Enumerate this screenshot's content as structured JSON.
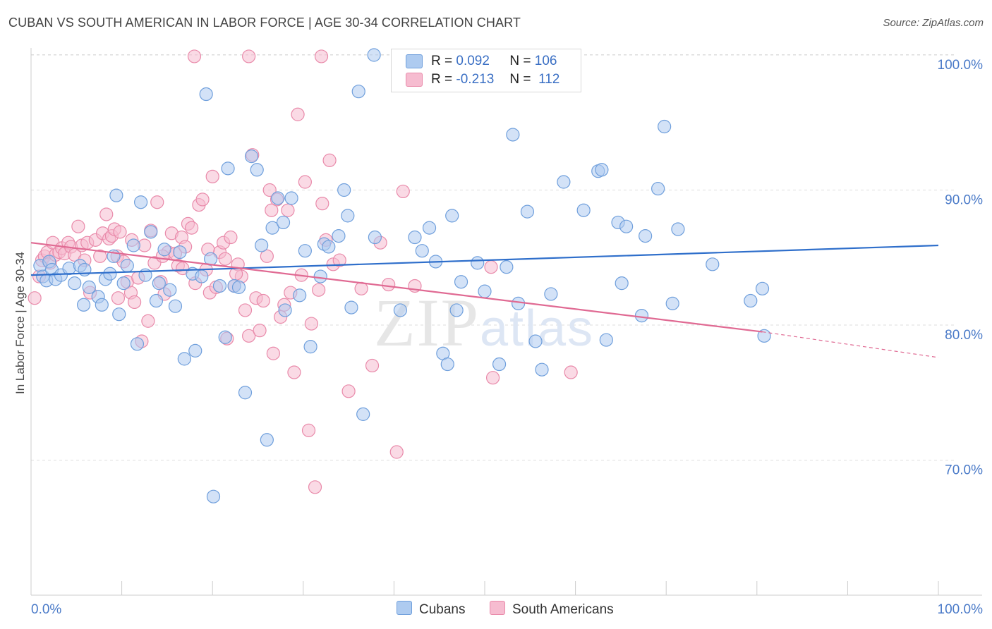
{
  "title": "CUBAN VS SOUTH AMERICAN IN LABOR FORCE | AGE 30-34 CORRELATION CHART",
  "source": "Source: ZipAtlas.com",
  "legend": {
    "r_label": "R =",
    "n_label": "N =",
    "rows": [
      {
        "name": "Cubans",
        "r": "0.092",
        "n": "106"
      },
      {
        "name": "South Americans",
        "r": "-0.213",
        "n": "112"
      }
    ]
  },
  "colors": {
    "cubans_fill": "#aecbf0",
    "cubans_stroke": "#6f9fdc",
    "cubans_line": "#2f6fcb",
    "south_fill": "#f6bcd0",
    "south_stroke": "#e98aaa",
    "south_line": "#e06a93",
    "grid": "#dddddd",
    "tick_text": "#4a7ac8"
  },
  "chart_data": {
    "type": "scatter",
    "ylabel": "In Labor Force | Age 30-34",
    "xlim": [
      0,
      100
    ],
    "ylim": [
      60,
      100
    ],
    "x_tick_labels": [
      "0.0%",
      "100.0%"
    ],
    "y_ticks": [
      {
        "value": 70,
        "label": "70.0%"
      },
      {
        "value": 80,
        "label": "80.0%"
      },
      {
        "value": 90,
        "label": "90.0%"
      },
      {
        "value": 100,
        "label": "100.0%"
      }
    ],
    "grid": true,
    "legend_position": "top-center",
    "watermark": "ZIPatlas",
    "series": [
      {
        "name": "Cubans",
        "trend": {
          "x0": 0,
          "y0": 83.7,
          "x1": 100,
          "y1": 85.9
        },
        "points": [
          [
            1,
            84.4
          ],
          [
            1.3,
            83.6
          ],
          [
            1.7,
            83.3
          ],
          [
            2,
            84.7
          ],
          [
            2.3,
            84.1
          ],
          [
            2.7,
            83.4
          ],
          [
            3.3,
            83.7
          ],
          [
            4.2,
            84.2
          ],
          [
            4.8,
            83.1
          ],
          [
            5.4,
            84.4
          ],
          [
            5.9,
            84.1
          ],
          [
            6.4,
            82.8
          ],
          [
            5.8,
            81.5
          ],
          [
            7.4,
            82.1
          ],
          [
            7.8,
            81.5
          ],
          [
            8.2,
            83.4
          ],
          [
            8.7,
            83.8
          ],
          [
            9.1,
            85.1
          ],
          [
            9.4,
            89.6
          ],
          [
            9.7,
            80.8
          ],
          [
            10.2,
            83.1
          ],
          [
            10.6,
            84.4
          ],
          [
            11.3,
            85.9
          ],
          [
            11.7,
            78.6
          ],
          [
            12.1,
            89.1
          ],
          [
            12.6,
            83.7
          ],
          [
            13.2,
            86.9
          ],
          [
            13.8,
            81.8
          ],
          [
            14.1,
            83.1
          ],
          [
            14.7,
            85.6
          ],
          [
            15.3,
            82.6
          ],
          [
            15.9,
            81.4
          ],
          [
            16.4,
            85.4
          ],
          [
            16.9,
            77.5
          ],
          [
            17.8,
            83.8
          ],
          [
            18.1,
            78.1
          ],
          [
            18.8,
            83.6
          ],
          [
            19.3,
            97.1
          ],
          [
            19.8,
            84.9
          ],
          [
            20.1,
            67.3
          ],
          [
            20.8,
            82.9
          ],
          [
            21.4,
            79.1
          ],
          [
            21.7,
            91.6
          ],
          [
            22.4,
            82.9
          ],
          [
            22.9,
            82.8
          ],
          [
            23.6,
            75
          ],
          [
            24.3,
            92.5
          ],
          [
            24.9,
            91.5
          ],
          [
            25.4,
            85.9
          ],
          [
            26,
            71.5
          ],
          [
            26.6,
            87.2
          ],
          [
            27.2,
            89.4
          ],
          [
            28,
            81.1
          ],
          [
            27.8,
            87.6
          ],
          [
            28.7,
            89.4
          ],
          [
            29.6,
            82.2
          ],
          [
            30.2,
            85.5
          ],
          [
            30.8,
            78.4
          ],
          [
            31.9,
            83.6
          ],
          [
            32.3,
            86
          ],
          [
            32.8,
            85.8
          ],
          [
            33.9,
            86.6
          ],
          [
            34.5,
            90
          ],
          [
            34.9,
            88.1
          ],
          [
            35.3,
            81.3
          ],
          [
            36.1,
            97.3
          ],
          [
            36.6,
            73.4
          ],
          [
            37.9,
            86.5
          ],
          [
            37.8,
            100
          ],
          [
            40.7,
            81.1
          ],
          [
            42.3,
            86.5
          ],
          [
            43.1,
            85.5
          ],
          [
            43.9,
            87.2
          ],
          [
            44.6,
            84.7
          ],
          [
            45.4,
            77.9
          ],
          [
            45.9,
            77.1
          ],
          [
            46.4,
            88.1
          ],
          [
            46.9,
            81.1
          ],
          [
            47.4,
            83.2
          ],
          [
            49.2,
            84.6
          ],
          [
            50,
            82.5
          ],
          [
            51.6,
            77.1
          ],
          [
            52.4,
            84.3
          ],
          [
            53.1,
            94.1
          ],
          [
            53.7,
            81.6
          ],
          [
            54.7,
            88.4
          ],
          [
            55.6,
            78.8
          ],
          [
            56.3,
            76.7
          ],
          [
            57.3,
            82.3
          ],
          [
            58.7,
            90.6
          ],
          [
            60.9,
            88.5
          ],
          [
            62.5,
            91.4
          ],
          [
            62.9,
            91.5
          ],
          [
            63.4,
            78.9
          ],
          [
            64.7,
            87.6
          ],
          [
            65.1,
            83.1
          ],
          [
            65.6,
            87.3
          ],
          [
            67.3,
            80.7
          ],
          [
            67.7,
            86.6
          ],
          [
            69.1,
            90.1
          ],
          [
            69.8,
            94.7
          ],
          [
            70.7,
            81.6
          ],
          [
            71.3,
            87.1
          ],
          [
            75.1,
            84.5
          ],
          [
            79.3,
            81.8
          ],
          [
            80.6,
            82.7
          ],
          [
            80.8,
            79.2
          ]
        ]
      },
      {
        "name": "South Americans",
        "trend": {
          "x0": 0,
          "y0": 86.1,
          "x1": 80.6,
          "y1": 79.5,
          "dash_x1": 100,
          "dash_y1": 77.6
        },
        "points": [
          [
            0.4,
            82
          ],
          [
            0.9,
            83.6
          ],
          [
            1.2,
            84.8
          ],
          [
            1.5,
            85.1
          ],
          [
            1.8,
            85.4
          ],
          [
            2.1,
            84.6
          ],
          [
            2.4,
            86.1
          ],
          [
            2.7,
            85.2
          ],
          [
            3.1,
            85.4
          ],
          [
            3.4,
            85.7
          ],
          [
            3.7,
            85.3
          ],
          [
            4.1,
            86.1
          ],
          [
            4.4,
            85.8
          ],
          [
            4.8,
            85.2
          ],
          [
            5.2,
            87.3
          ],
          [
            5.6,
            85.9
          ],
          [
            5.9,
            84.8
          ],
          [
            6.2,
            86.1
          ],
          [
            6.5,
            82.4
          ],
          [
            7.1,
            86.3
          ],
          [
            7.6,
            85.1
          ],
          [
            7.9,
            86.8
          ],
          [
            8.3,
            88.2
          ],
          [
            8.6,
            86.4
          ],
          [
            8.9,
            86.6
          ],
          [
            9.2,
            87.1
          ],
          [
            9.5,
            85.1
          ],
          [
            9.8,
            86.9
          ],
          [
            10.2,
            84.7
          ],
          [
            10.6,
            83.2
          ],
          [
            11,
            82.4
          ],
          [
            11.4,
            81.7
          ],
          [
            11.8,
            83.5
          ],
          [
            12.2,
            78.8
          ],
          [
            12.5,
            85.9
          ],
          [
            12.9,
            80.3
          ],
          [
            13.2,
            87
          ],
          [
            13.6,
            84.6
          ],
          [
            13.9,
            89.1
          ],
          [
            14.3,
            83.2
          ],
          [
            14.7,
            82.3
          ],
          [
            15.1,
            85.4
          ],
          [
            15.5,
            86.8
          ],
          [
            15.9,
            85.3
          ],
          [
            16.2,
            84.4
          ],
          [
            16.6,
            86.5
          ],
          [
            17,
            85.8
          ],
          [
            17.3,
            87.5
          ],
          [
            17.7,
            87.2
          ],
          [
            18.1,
            83.1
          ],
          [
            18.5,
            88.9
          ],
          [
            18.9,
            89.3
          ],
          [
            19.3,
            84.1
          ],
          [
            19.7,
            82.4
          ],
          [
            20,
            91
          ],
          [
            20.4,
            82.8
          ],
          [
            20.8,
            85.4
          ],
          [
            21.2,
            86.1
          ],
          [
            21.6,
            79
          ],
          [
            22,
            86.5
          ],
          [
            22.4,
            82.9
          ],
          [
            22.8,
            84.5
          ],
          [
            23.2,
            83.6
          ],
          [
            23.6,
            81.1
          ],
          [
            24,
            79.2
          ],
          [
            24.4,
            92.6
          ],
          [
            24.8,
            82
          ],
          [
            25.2,
            79.6
          ],
          [
            25.6,
            81.8
          ],
          [
            26,
            85.1
          ],
          [
            26.3,
            90
          ],
          [
            26.7,
            77.9
          ],
          [
            27.1,
            89.3
          ],
          [
            27.5,
            80.6
          ],
          [
            27.9,
            81.5
          ],
          [
            28.3,
            88.5
          ],
          [
            28.6,
            82.4
          ],
          [
            29,
            76.5
          ],
          [
            29.4,
            95.6
          ],
          [
            29.8,
            83.7
          ],
          [
            30.2,
            90.6
          ],
          [
            30.6,
            72.2
          ],
          [
            30.9,
            80.1
          ],
          [
            31.3,
            68
          ],
          [
            31.7,
            82.6
          ],
          [
            32.1,
            89
          ],
          [
            32.5,
            86.3
          ],
          [
            32.9,
            92.2
          ],
          [
            33.3,
            84.5
          ],
          [
            34,
            84.8
          ],
          [
            35,
            75.1
          ],
          [
            36.4,
            82.7
          ],
          [
            37.6,
            77
          ],
          [
            38.5,
            86.1
          ],
          [
            39.4,
            83
          ],
          [
            40.3,
            70.6
          ],
          [
            41,
            89.9
          ],
          [
            42.3,
            82.9
          ],
          [
            50.7,
            84.3
          ],
          [
            50.9,
            76.1
          ],
          [
            59.5,
            76.5
          ],
          [
            9.6,
            82
          ],
          [
            11.1,
            86.3
          ],
          [
            14.5,
            85.1
          ],
          [
            16.7,
            84.2
          ],
          [
            19.5,
            85.6
          ],
          [
            21.4,
            84.9
          ],
          [
            22.6,
            83.8
          ],
          [
            18,
            99.9
          ],
          [
            24,
            99.9
          ],
          [
            32,
            99.9
          ],
          [
            26.5,
            88.5
          ]
        ]
      }
    ]
  }
}
